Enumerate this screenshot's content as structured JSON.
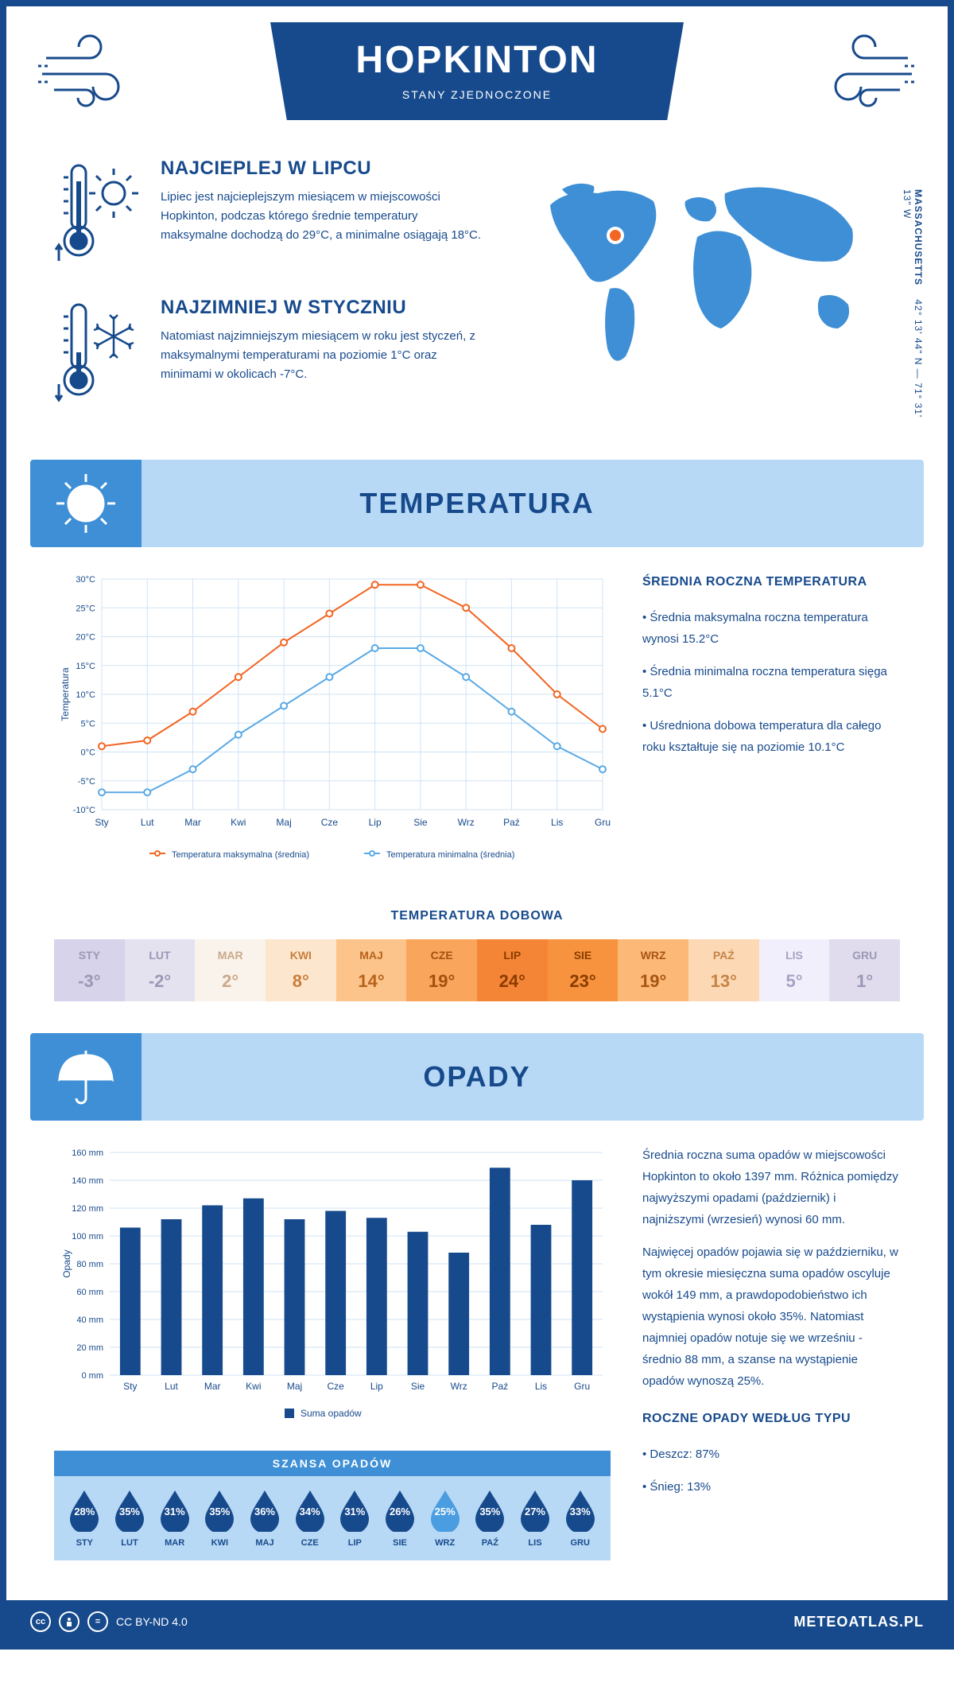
{
  "header": {
    "title": "HOPKINTON",
    "subtitle": "STANY ZJEDNOCZONE"
  },
  "coords": {
    "state": "MASSACHUSETTS",
    "value": "42° 13' 44\" N — 71° 31' 13\" W"
  },
  "intro": {
    "warm": {
      "title": "NAJCIEPLEJ W LIPCU",
      "text": "Lipiec jest najcieplejszym miesiącem w miejscowości Hopkinton, podczas którego średnie temperatury maksymalne dochodzą do 29°C, a minimalne osiągają 18°C."
    },
    "cold": {
      "title": "NAJZIMNIEJ W STYCZNIU",
      "text": "Natomiast najzimniejszym miesiącem w roku jest styczeń, z maksymalnymi temperaturami na poziomie 1°C oraz minimami w okolicach -7°C."
    }
  },
  "tempSection": {
    "title": "TEMPERATURA",
    "chart": {
      "type": "line",
      "months": [
        "Sty",
        "Lut",
        "Mar",
        "Kwi",
        "Maj",
        "Cze",
        "Lip",
        "Sie",
        "Wrz",
        "Paź",
        "Lis",
        "Gru"
      ],
      "max": [
        1,
        2,
        7,
        13,
        19,
        24,
        29,
        29,
        25,
        18,
        10,
        4
      ],
      "min": [
        -7,
        -7,
        -3,
        3,
        8,
        13,
        18,
        18,
        13,
        7,
        1,
        -3
      ],
      "max_color": "#f26522",
      "min_color": "#5aa9e6",
      "grid_color": "#cfe3f5",
      "text_color": "#174a8c",
      "ylim": [
        -10,
        30
      ],
      "ytick_step": 5,
      "ylabel": "Temperatura",
      "legend_max": "Temperatura maksymalna (średnia)",
      "legend_min": "Temperatura minimalna (średnia)"
    },
    "side": {
      "title": "ŚREDNIA ROCZNA TEMPERATURA",
      "b1": "• Średnia maksymalna roczna temperatura wynosi 15.2°C",
      "b2": "• Średnia minimalna roczna temperatura sięga 5.1°C",
      "b3": "• Uśredniona dobowa temperatura dla całego roku kształtuje się na poziomie 10.1°C"
    },
    "daily": {
      "title": "TEMPERATURA DOBOWA",
      "months": [
        "STY",
        "LUT",
        "MAR",
        "KWI",
        "MAJ",
        "CZE",
        "LIP",
        "SIE",
        "WRZ",
        "PAŹ",
        "LIS",
        "GRU"
      ],
      "values": [
        "-3°",
        "-2°",
        "2°",
        "8°",
        "14°",
        "19°",
        "24°",
        "23°",
        "19°",
        "13°",
        "5°",
        "1°"
      ],
      "bg_colors": [
        "#d7d3ea",
        "#e5e2f0",
        "#faf3ec",
        "#fce6ce",
        "#fcc48a",
        "#f9a55c",
        "#f58536",
        "#f7933e",
        "#fcb877",
        "#fcd9b4",
        "#f2effc",
        "#e0dcee"
      ],
      "text_colors": [
        "#9b97b6",
        "#9b97b6",
        "#c9a989",
        "#c97e3a",
        "#b8631d",
        "#a34f0f",
        "#8a3c00",
        "#8a3c00",
        "#a85514",
        "#c78346",
        "#a6a2c4",
        "#9b97b6"
      ]
    }
  },
  "rainSection": {
    "title": "OPADY",
    "chart": {
      "type": "bar",
      "months": [
        "Sty",
        "Lut",
        "Mar",
        "Kwi",
        "Maj",
        "Cze",
        "Lip",
        "Sie",
        "Wrz",
        "Paź",
        "Lis",
        "Gru"
      ],
      "values": [
        106,
        112,
        122,
        127,
        112,
        118,
        113,
        103,
        88,
        149,
        108,
        140
      ],
      "bar_color": "#174a8c",
      "grid_color": "#cfe3f5",
      "text_color": "#174a8c",
      "ylim": [
        0,
        160
      ],
      "ytick_step": 20,
      "ylabel": "Opady",
      "legend": "Suma opadów"
    },
    "side": {
      "p1": "Średnia roczna suma opadów w miejscowości Hopkinton to około 1397 mm. Różnica pomiędzy najwyższymi opadami (październik) i najniższymi (wrzesień) wynosi 60 mm.",
      "p2": "Najwięcej opadów pojawia się w październiku, w tym okresie miesięczna suma opadów oscyluje wokół 149 mm, a prawdopodobieństwo ich wystąpienia wynosi około 35%. Natomiast najmniej opadów notuje się we wrześniu - średnio 88 mm, a szanse na wystąpienie opadów wynoszą 25%.",
      "type_title": "ROCZNE OPADY WEDŁUG TYPU",
      "type_rain": "• Deszcz: 87%",
      "type_snow": "• Śnieg: 13%"
    },
    "chance": {
      "title": "SZANSA OPADÓW",
      "months": [
        "STY",
        "LUT",
        "MAR",
        "KWI",
        "MAJ",
        "CZE",
        "LIP",
        "SIE",
        "WRZ",
        "PAŹ",
        "LIS",
        "GRU"
      ],
      "values": [
        "28%",
        "35%",
        "31%",
        "35%",
        "36%",
        "34%",
        "31%",
        "26%",
        "25%",
        "35%",
        "27%",
        "33%"
      ],
      "drop_dark": "#174a8c",
      "drop_light": "#4a9de0",
      "lowest_index": 8
    }
  },
  "footer": {
    "license": "CC BY-ND 4.0",
    "site": "METEOATLAS.PL"
  }
}
